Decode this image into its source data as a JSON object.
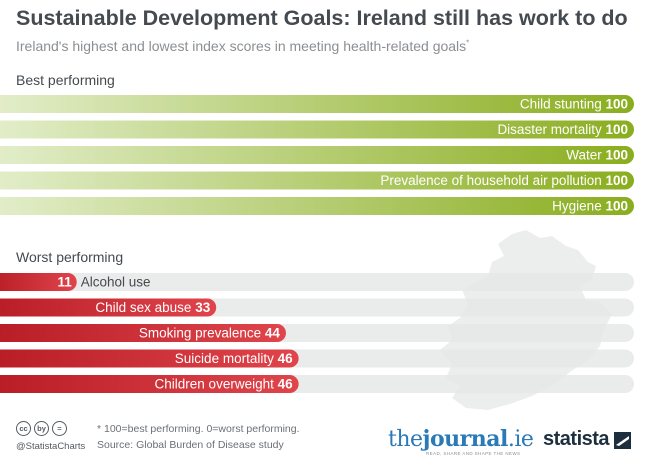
{
  "title": "Sustainable Development Goals: Ireland still has work to do",
  "subtitle": "Ireland's highest and lowest index scores in meeting health-related goals",
  "subtitle_marker": "*",
  "colors": {
    "best_bar_start": "#e3eecb",
    "best_bar_end": "#8aad1e",
    "worst_bar_start": "#b81c25",
    "worst_bar_end": "#e0454c",
    "track": "#e6e7e8",
    "text_dark": "#444a4f"
  },
  "chart_data": [
    {
      "type": "bar",
      "orientation": "horizontal",
      "section_label": "Best performing",
      "categories": [
        "Child stunting",
        "Disaster mortality",
        "Water",
        "Prevalence of household air pollution",
        "Hygiene"
      ],
      "values": [
        100,
        100,
        100,
        100,
        100
      ],
      "xlim": [
        0,
        100
      ]
    },
    {
      "type": "bar",
      "orientation": "horizontal",
      "section_label": "Worst performing",
      "categories": [
        "Alcohol use",
        "Child sex abuse",
        "Smoking prevalence",
        "Suicide mortality",
        "Children overweight"
      ],
      "values": [
        11,
        33,
        44,
        46,
        46
      ],
      "xlim": [
        0,
        100
      ]
    }
  ],
  "footer": {
    "cc_icons": [
      "cc",
      "by",
      "="
    ],
    "handle": "@StatistaCharts",
    "footnote": "* 100=best performing. 0=worst performing.",
    "source": "Source: Global Burden of Disease study"
  },
  "logos": {
    "journal_prefix": "the",
    "journal_main": "journal",
    "journal_suffix": ".ie",
    "journal_tagline": "READ, SHARE AND SHAPE THE NEWS",
    "statista": "statista"
  }
}
